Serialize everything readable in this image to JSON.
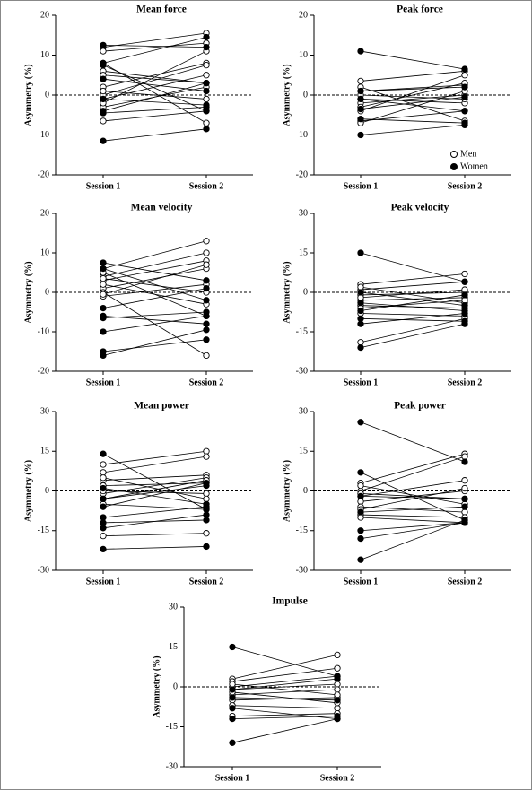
{
  "legend": [
    {
      "name": "Men",
      "fill": "#ffffff"
    },
    {
      "name": "Women",
      "fill": "#000000"
    }
  ],
  "chart_data": [
    {
      "type": "paired",
      "title": "Mean force",
      "ylabel": "Asymmetry (%)",
      "categories": [
        "Session 1",
        "Session 2"
      ],
      "ylim": [
        -20,
        20
      ],
      "yticks": [
        -20,
        -10,
        0,
        10,
        20
      ],
      "groups": [
        {
          "pairs": [
            [
              12,
              15.5
            ],
            [
              11,
              13
            ],
            [
              6,
              3
            ],
            [
              2,
              8
            ],
            [
              -1,
              5
            ],
            [
              -3,
              2
            ],
            [
              -6.5,
              -4
            ],
            [
              0,
              7.5
            ],
            [
              -2,
              11
            ],
            [
              8,
              -7
            ],
            [
              5,
              3
            ],
            [
              1,
              -1
            ]
          ]
        },
        {
          "pairs": [
            [
              12.5,
              12
            ],
            [
              8,
              14.5
            ],
            [
              4,
              1
            ],
            [
              -4,
              3
            ],
            [
              -4.5,
              -3
            ],
            [
              -11.5,
              -8.5
            ],
            [
              7.5,
              -4
            ],
            [
              -1,
              -2.5
            ]
          ]
        }
      ]
    },
    {
      "type": "paired",
      "title": "Peak force",
      "ylabel": "Asymmetry (%)",
      "categories": [
        "Session 1",
        "Session 2"
      ],
      "ylim": [
        -20,
        20
      ],
      "yticks": [
        -20,
        -10,
        0,
        10,
        20
      ],
      "groups": [
        {
          "pairs": [
            [
              3.5,
              6
            ],
            [
              1,
              2.5
            ],
            [
              -1,
              -2
            ],
            [
              -2,
              0
            ],
            [
              -3,
              3
            ],
            [
              -6.5,
              -4
            ],
            [
              -7,
              1
            ],
            [
              2,
              -6.5
            ],
            [
              0,
              -1
            ],
            [
              -4,
              5
            ]
          ]
        },
        {
          "pairs": [
            [
              11,
              6.5
            ],
            [
              -10,
              -7.5
            ],
            [
              -3.5,
              -0.5
            ],
            [
              -1,
              -4
            ],
            [
              -6,
              -7
            ],
            [
              1,
              2
            ]
          ]
        }
      ]
    },
    {
      "type": "paired",
      "title": "Mean velocity",
      "ylabel": "Asymmetry (%)",
      "categories": [
        "Session 1",
        "Session 2"
      ],
      "ylim": [
        -20,
        20
      ],
      "yticks": [
        -20,
        -10,
        0,
        10,
        20
      ],
      "groups": [
        {
          "pairs": [
            [
              6,
              13
            ],
            [
              4,
              10
            ],
            [
              3,
              8
            ],
            [
              1,
              6
            ],
            [
              0,
              -16
            ],
            [
              -1,
              2
            ],
            [
              2,
              -3
            ],
            [
              5,
              -6
            ],
            [
              -0.5,
              7
            ],
            [
              3.5,
              0
            ]
          ]
        },
        {
          "pairs": [
            [
              7.5,
              3
            ],
            [
              -4,
              1
            ],
            [
              -6,
              -8
            ],
            [
              -6.5,
              -5
            ],
            [
              -10,
              -6
            ],
            [
              -15,
              -12
            ],
            [
              -16,
              -9.5
            ],
            [
              6,
              -2
            ]
          ]
        }
      ]
    },
    {
      "type": "paired",
      "title": "Peak velocity",
      "ylabel": "Asymmetry (%)",
      "categories": [
        "Session 1",
        "Session 2"
      ],
      "ylim": [
        -30,
        30
      ],
      "yticks": [
        -30,
        -15,
        0,
        15,
        30
      ],
      "groups": [
        {
          "pairs": [
            [
              3,
              7
            ],
            [
              1,
              4
            ],
            [
              -1,
              0
            ],
            [
              -3,
              -2
            ],
            [
              -5,
              -6
            ],
            [
              -8,
              -9
            ],
            [
              -19,
              -10
            ],
            [
              2,
              -4
            ],
            [
              -2,
              1
            ],
            [
              -6,
              -3
            ]
          ]
        },
        {
          "pairs": [
            [
              15,
              4
            ],
            [
              -21,
              -12
            ],
            [
              -12,
              -8
            ],
            [
              -10,
              -11
            ],
            [
              -4,
              -7
            ],
            [
              0,
              -5
            ],
            [
              -7,
              -1
            ]
          ]
        }
      ]
    },
    {
      "type": "paired",
      "title": "Mean power",
      "ylabel": "Asymmetry (%)",
      "categories": [
        "Session 1",
        "Session 2"
      ],
      "ylim": [
        -30,
        30
      ],
      "yticks": [
        -30,
        -15,
        0,
        15,
        30
      ],
      "groups": [
        {
          "pairs": [
            [
              10,
              15
            ],
            [
              7,
              13
            ],
            [
              4,
              6
            ],
            [
              2,
              3
            ],
            [
              -1,
              5
            ],
            [
              -5,
              -7
            ],
            [
              -17,
              -16
            ],
            [
              0,
              -1
            ],
            [
              -3,
              4
            ],
            [
              5,
              -3
            ]
          ]
        },
        {
          "pairs": [
            [
              14,
              -7
            ],
            [
              1,
              -5
            ],
            [
              -10,
              -6
            ],
            [
              -12,
              -11
            ],
            [
              -14,
              -9
            ],
            [
              -22,
              -21
            ],
            [
              -6,
              3
            ],
            [
              -3,
              2
            ]
          ]
        }
      ]
    },
    {
      "type": "paired",
      "title": "Peak power",
      "ylabel": "Asymmetry (%)",
      "categories": [
        "Session 1",
        "Session 2"
      ],
      "ylim": [
        -30,
        30
      ],
      "yticks": [
        -30,
        -15,
        0,
        15,
        30
      ],
      "groups": [
        {
          "pairs": [
            [
              3,
              14
            ],
            [
              0,
              13
            ],
            [
              -2,
              4
            ],
            [
              -4,
              0
            ],
            [
              -6,
              -8
            ],
            [
              -9,
              -10
            ],
            [
              -10,
              -12
            ],
            [
              2,
              -5
            ],
            [
              -7,
              1
            ],
            [
              -1,
              -3
            ]
          ]
        },
        {
          "pairs": [
            [
              26,
              11
            ],
            [
              7,
              -11
            ],
            [
              -2,
              -3
            ],
            [
              -15,
              -12
            ],
            [
              -18,
              -12
            ],
            [
              -26,
              -11
            ],
            [
              -8,
              -6
            ]
          ]
        }
      ]
    },
    {
      "type": "paired",
      "title": "Impulse",
      "ylabel": "Asymmetry (%)",
      "categories": [
        "Session 1",
        "Session 2"
      ],
      "ylim": [
        -30,
        30
      ],
      "yticks": [
        -30,
        -15,
        0,
        15,
        30
      ],
      "groups": [
        {
          "pairs": [
            [
              3,
              12
            ],
            [
              2,
              7
            ],
            [
              0,
              4
            ],
            [
              -1,
              1
            ],
            [
              -3,
              -1
            ],
            [
              -5,
              -4
            ],
            [
              -7,
              -8
            ],
            [
              -11,
              -10
            ],
            [
              1,
              -3
            ],
            [
              -2,
              -6
            ]
          ]
        },
        {
          "pairs": [
            [
              15,
              4
            ],
            [
              -21,
              -12
            ],
            [
              -12,
              -11
            ],
            [
              -8,
              -12
            ],
            [
              -4,
              -5
            ],
            [
              -1,
              3
            ]
          ]
        }
      ]
    }
  ]
}
